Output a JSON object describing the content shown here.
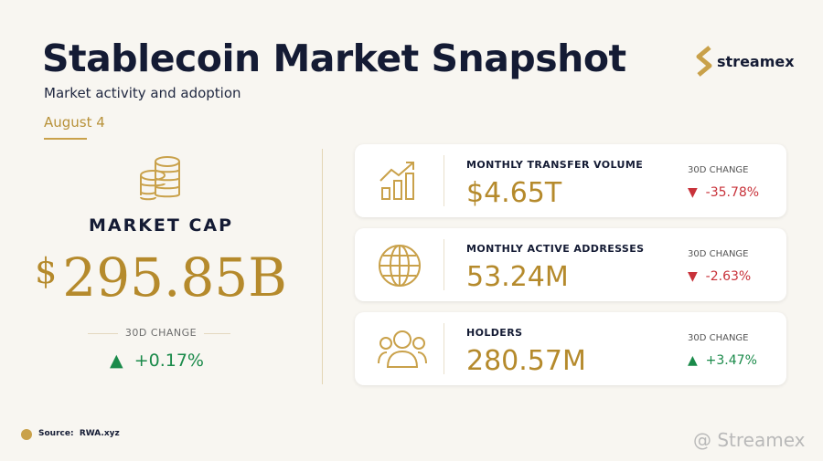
{
  "header": {
    "title": "Stablecoin Market Snapshot",
    "subtitle": "Market activity and adoption",
    "date": "August 4",
    "brand": "streamex"
  },
  "market_cap": {
    "label": "MARKET CAP",
    "currency": "$",
    "value": "295.85B",
    "change_label": "30D CHANGE",
    "change": "+0.17%"
  },
  "metrics": [
    {
      "label": "MONTHLY TRANSFER VOLUME",
      "value": "$4.65T",
      "change_label": "30D CHANGE",
      "change": "-35.78%"
    },
    {
      "label": "MONTHLY ACTIVE ADDRESSES",
      "value": "53.24M",
      "change_label": "30D CHANGE",
      "change": "-2.63%"
    },
    {
      "label": "HOLDERS",
      "value": "280.57M",
      "change_label": "30D CHANGE",
      "change": "+3.47%"
    }
  ],
  "footer": {
    "source_label": "Source:",
    "source": "RWA.xyz",
    "watermark": "@ Streamex"
  }
}
